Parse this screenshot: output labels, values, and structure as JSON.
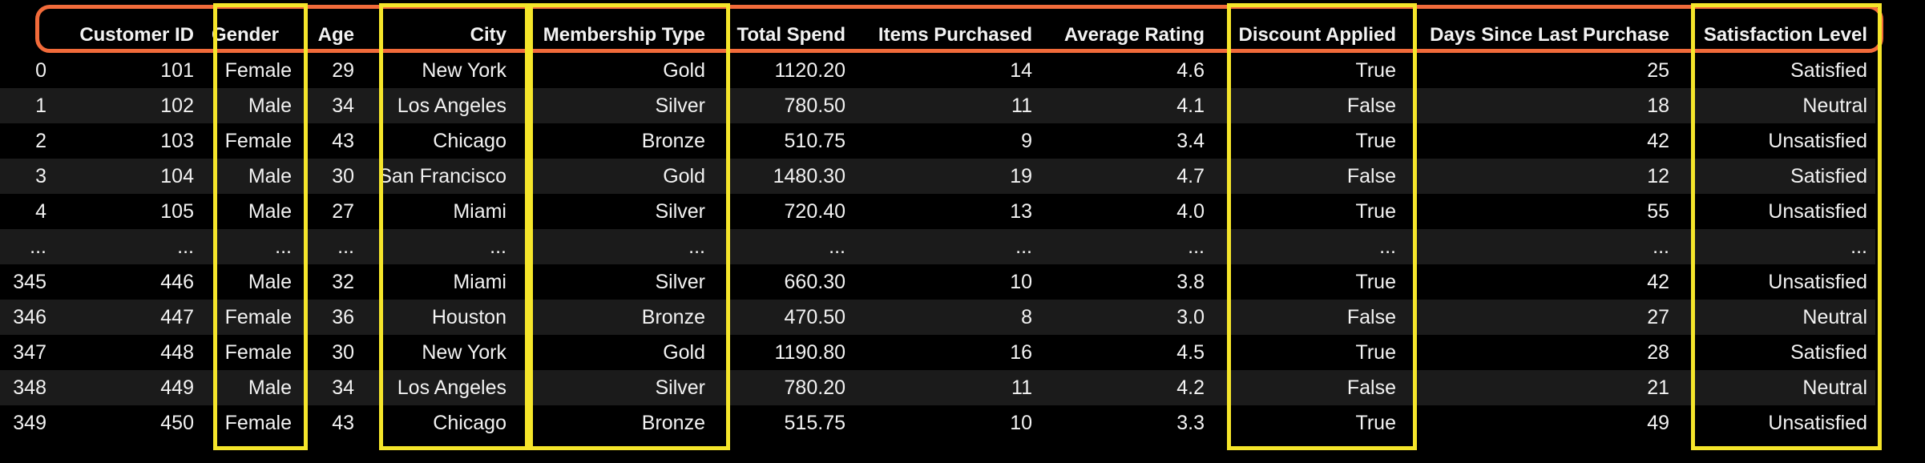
{
  "table": {
    "index_header": "",
    "columns": [
      "Customer ID",
      "Gender",
      "Age",
      "City",
      "Membership Type",
      "Total Spend",
      "Items Purchased",
      "Average Rating",
      "Discount Applied",
      "Days Since Last Purchase",
      "Satisfaction Level"
    ],
    "rows": [
      [
        "0",
        "101",
        "Female",
        "29",
        "New York",
        "Gold",
        "1120.20",
        "14",
        "4.6",
        "True",
        "25",
        "Satisfied"
      ],
      [
        "1",
        "102",
        "Male",
        "34",
        "Los Angeles",
        "Silver",
        "780.50",
        "11",
        "4.1",
        "False",
        "18",
        "Neutral"
      ],
      [
        "2",
        "103",
        "Female",
        "43",
        "Chicago",
        "Bronze",
        "510.75",
        "9",
        "3.4",
        "True",
        "42",
        "Unsatisfied"
      ],
      [
        "3",
        "104",
        "Male",
        "30",
        "San Francisco",
        "Gold",
        "1480.30",
        "19",
        "4.7",
        "False",
        "12",
        "Satisfied"
      ],
      [
        "4",
        "105",
        "Male",
        "27",
        "Miami",
        "Silver",
        "720.40",
        "13",
        "4.0",
        "True",
        "55",
        "Unsatisfied"
      ],
      [
        "...",
        "...",
        "...",
        "...",
        "...",
        "...",
        "...",
        "...",
        "...",
        "...",
        "...",
        "..."
      ],
      [
        "345",
        "446",
        "Male",
        "32",
        "Miami",
        "Silver",
        "660.30",
        "10",
        "3.8",
        "True",
        "42",
        "Unsatisfied"
      ],
      [
        "346",
        "447",
        "Female",
        "36",
        "Houston",
        "Bronze",
        "470.50",
        "8",
        "3.0",
        "False",
        "27",
        "Neutral"
      ],
      [
        "347",
        "448",
        "Female",
        "30",
        "New York",
        "Gold",
        "1190.80",
        "16",
        "4.5",
        "True",
        "28",
        "Satisfied"
      ],
      [
        "348",
        "449",
        "Male",
        "34",
        "Los Angeles",
        "Silver",
        "780.20",
        "11",
        "4.2",
        "False",
        "21",
        "Neutral"
      ],
      [
        "349",
        "450",
        "Female",
        "43",
        "Chicago",
        "Bronze",
        "515.75",
        "10",
        "3.3",
        "True",
        "49",
        "Unsatisfied"
      ]
    ]
  },
  "highlights": {
    "header_color": "#f26b3a",
    "column_color": "#f5e52a",
    "highlighted_columns": [
      "Gender",
      "City",
      "Membership Type",
      "Discount Applied",
      "Satisfaction Level"
    ]
  },
  "colors": {
    "background": "#000000",
    "stripe": "#1b1b1b",
    "text": "#f2f2f2"
  }
}
